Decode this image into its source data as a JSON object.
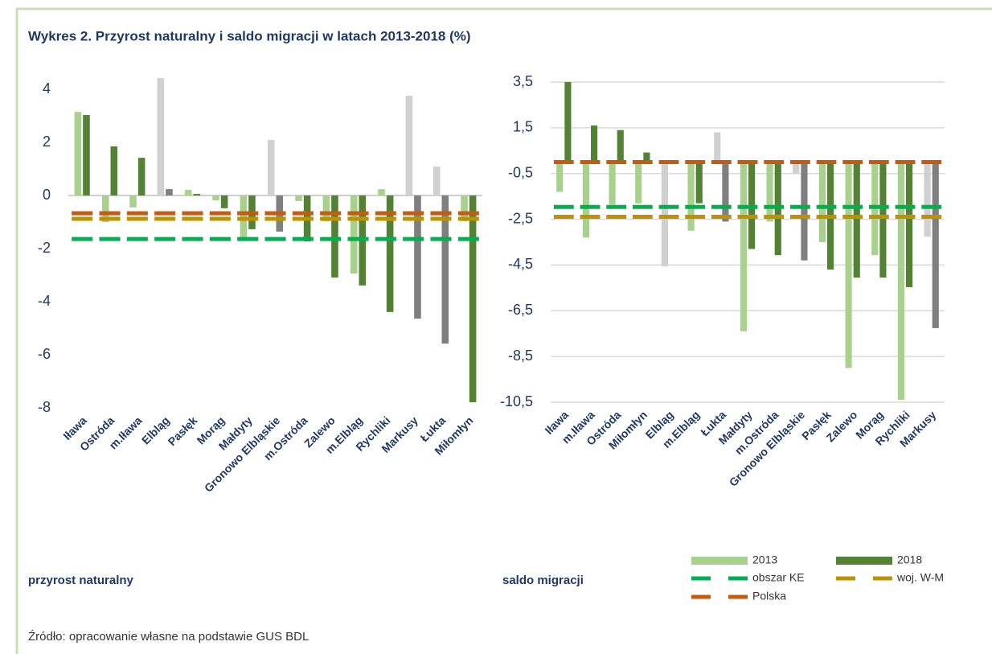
{
  "title": "Wykres 2. Przyrost naturalny i saldo migracji w latach 2013-2018 (%)",
  "source": "Źródło: opracowanie własne na podstawie GUS BDL",
  "chart_data": [
    {
      "type": "bar",
      "label": "przyrost naturalny",
      "categories": [
        "Iława",
        "Ostróda",
        "m.Iława",
        "Elbląg",
        "Pasłęk",
        "Morąg",
        "Małdyty",
        "Gronowo Elbląskie",
        "m.Ostróda",
        "Zalewo",
        "m.Elbląg",
        "Rychliki",
        "Markusy",
        "Łukta",
        "Miłomłyn"
      ],
      "series": [
        {
          "name": "2013",
          "color": "#a9d18e",
          "colors": [
            "#a9d18e",
            "#a9d18e",
            "#a9d18e",
            "#d0d0d0",
            "#a9d18e",
            "#a9d18e",
            "#a9d18e",
            "#d0d0d0",
            "#a9d18e",
            "#a9d18e",
            "#a9d18e",
            "#a9d18e",
            "#d0d0d0",
            "#d0d0d0",
            "#a9d18e"
          ],
          "values": [
            3.15,
            -1.0,
            -0.45,
            4.42,
            0.21,
            -0.18,
            -1.67,
            2.09,
            -0.21,
            -0.97,
            -2.94,
            0.24,
            3.76,
            1.09,
            -0.97
          ]
        },
        {
          "name": "2018",
          "color": "#548235",
          "colors": [
            "#548235",
            "#548235",
            "#548235",
            "#7f7f7f",
            "#548235",
            "#548235",
            "#548235",
            "#7f7f7f",
            "#548235",
            "#548235",
            "#548235",
            "#548235",
            "#7f7f7f",
            "#7f7f7f",
            "#548235"
          ],
          "values": [
            3.03,
            1.85,
            1.42,
            0.24,
            0.06,
            -0.48,
            -1.27,
            -1.36,
            -1.73,
            -3.09,
            -3.39,
            -4.39,
            -4.64,
            -5.58,
            -7.79
          ]
        }
      ],
      "reference_lines": [
        {
          "name": "obszar KE",
          "color": "#00b050",
          "value": -1.64
        },
        {
          "name": "woj. W-M",
          "color": "#bf9000",
          "value": -0.88
        },
        {
          "name": "Polska",
          "color": "#c55a11",
          "value": -0.67
        }
      ],
      "ylim": [
        -8,
        4.5
      ],
      "yticks": [
        -8,
        -6,
        -4,
        -2,
        0,
        2,
        4
      ],
      "grid": false
    },
    {
      "type": "bar",
      "label": "saldo migracji",
      "categories": [
        "Iława",
        "m.Iława",
        "Ostróda",
        "Miłomłyn",
        "Elbląg",
        "m.Elbląg",
        "Łukta",
        "Małdyty",
        "m.Ostróda",
        "Gronowo Elbląskie",
        "Pasłęk",
        "Zalewo",
        "Morąg",
        "Rychliki",
        "Markusy"
      ],
      "series": [
        {
          "name": "2013",
          "color": "#a9d18e",
          "colors": [
            "#a9d18e",
            "#a9d18e",
            "#a9d18e",
            "#a9d18e",
            "#d0d0d0",
            "#a9d18e",
            "#d0d0d0",
            "#a9d18e",
            "#a9d18e",
            "#d0d0d0",
            "#a9d18e",
            "#a9d18e",
            "#a9d18e",
            "#a9d18e",
            "#d0d0d0"
          ],
          "values": [
            -1.3,
            -3.3,
            -1.86,
            -1.8,
            -4.56,
            -3.0,
            1.3,
            -7.4,
            -2.6,
            -0.5,
            -3.5,
            -9.0,
            -4.07,
            -10.4,
            -3.26
          ]
        },
        {
          "name": "2018",
          "color": "#548235",
          "colors": [
            "#548235",
            "#548235",
            "#548235",
            "#548235",
            "#7f7f7f",
            "#548235",
            "#7f7f7f",
            "#548235",
            "#548235",
            "#7f7f7f",
            "#548235",
            "#548235",
            "#548235",
            "#548235",
            "#7f7f7f"
          ],
          "values": [
            3.5,
            1.6,
            1.4,
            0.42,
            -0.05,
            -1.8,
            -2.6,
            -3.8,
            -4.07,
            -4.3,
            -4.7,
            -5.05,
            -5.05,
            -5.47,
            -7.26
          ]
        }
      ],
      "reference_lines": [
        {
          "name": "obszar KE",
          "color": "#00b050",
          "value": -1.96
        },
        {
          "name": "woj. W-M",
          "color": "#bf9000",
          "value": -2.39
        },
        {
          "name": "Polska",
          "color": "#c55a11",
          "value": 0
        }
      ],
      "ylim": [
        -10.5,
        3.5
      ],
      "yticks": [
        {
          "value": -10.5,
          "label": "-10,5"
        },
        {
          "value": -8.5,
          "label": "-8,5"
        },
        {
          "value": -6.5,
          "label": "-6,5"
        },
        {
          "value": -4.5,
          "label": "-4,5"
        },
        {
          "value": -2.5,
          "label": "-2,5"
        },
        {
          "value": -0.5,
          "label": "-0,5"
        },
        {
          "value": 1.5,
          "label": "1,5"
        },
        {
          "value": 3.5,
          "label": "3,5"
        }
      ],
      "grid": true
    }
  ]
}
